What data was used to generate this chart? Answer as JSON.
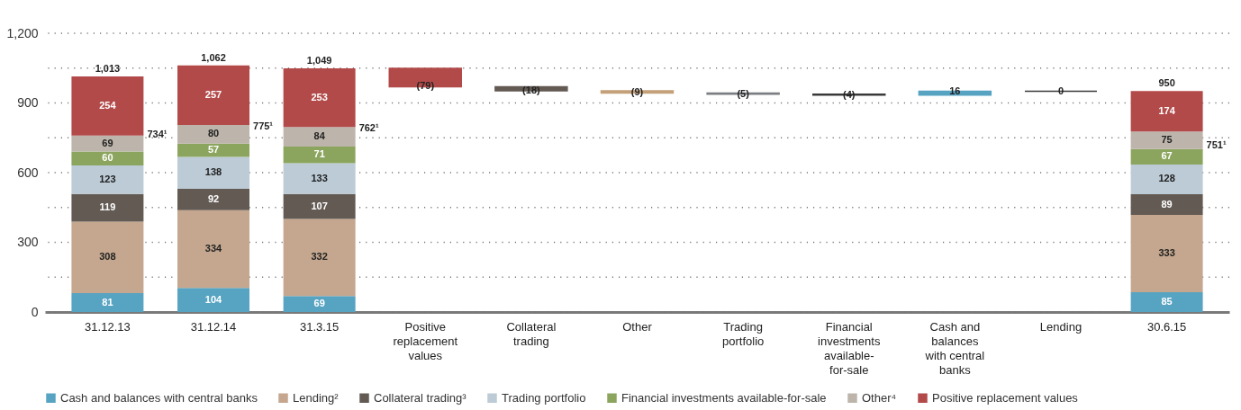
{
  "chart_data": {
    "type": "bar",
    "stacked": true,
    "categories": [
      "31.12.13",
      "31.12.14",
      "31.3.15",
      "Positive replacement values",
      "Collateral trading",
      "Other",
      "Trading portfolio",
      "Financial investments available-for-sale",
      "Cash and balances with central banks",
      "Lending",
      "30.6.15"
    ],
    "ylim": [
      0,
      1200
    ],
    "yticks": [
      0,
      {
        "value": 150,
        "label": null
      },
      300,
      {
        "value": 450,
        "label": null
      },
      600,
      {
        "value": 750,
        "label": null
      },
      900,
      {
        "value": 1050,
        "label": null
      },
      {
        "value": 1200,
        "label": "1,200"
      }
    ],
    "grid": "y",
    "legend": "bottom",
    "data_labels": true,
    "totals": [
      "1,013",
      "1,062",
      "1,049",
      null,
      null,
      null,
      null,
      null,
      null,
      null,
      "950"
    ],
    "annotations": [
      "734¹",
      "775¹",
      "762¹",
      "751¹"
    ],
    "series": [
      {
        "name": "Cash and balances with central banks",
        "color": "#57a3c2",
        "values": [
          81,
          104,
          69,
          null,
          null,
          null,
          null,
          null,
          null,
          null,
          85
        ]
      },
      {
        "name": "Lending²",
        "color": "#c4a78e",
        "values": [
          308,
          334,
          332,
          null,
          null,
          null,
          null,
          null,
          null,
          null,
          333
        ]
      },
      {
        "name": "Collateral trading³",
        "color": "#635a53",
        "values": [
          119,
          92,
          107,
          null,
          null,
          null,
          null,
          null,
          null,
          null,
          89
        ]
      },
      {
        "name": "Trading portfolio",
        "color": "#bccbd6",
        "values": [
          123,
          138,
          133,
          null,
          null,
          null,
          null,
          null,
          null,
          null,
          128
        ]
      },
      {
        "name": "Financial investments available-for-sale",
        "color": "#8ca55e",
        "values": [
          60,
          57,
          71,
          null,
          null,
          null,
          null,
          null,
          null,
          null,
          67
        ]
      },
      {
        "name": "Other⁴",
        "color": "#bdb5ab",
        "values": [
          69,
          80,
          84,
          null,
          null,
          null,
          null,
          null,
          null,
          null,
          75
        ]
      },
      {
        "name": "Positive replacement values",
        "color": "#b24a49",
        "values": [
          254,
          257,
          253,
          null,
          null,
          null,
          null,
          null,
          null,
          null,
          174
        ]
      },
      {
        "type": "bar",
        "values": [
          null,
          null,
          null,
          -79,
          -18,
          -9,
          -5,
          -4,
          16,
          0,
          null
        ],
        "base": [
          null,
          null,
          null,
          1049,
          970,
          952,
          943,
          938,
          934,
          950,
          null
        ],
        "colors": [
          null,
          null,
          null,
          "#b24a49",
          "#635a53",
          "#c4a07a",
          "#7a7e82",
          "#3a3a3a",
          "#57a3c2",
          "#3a3a3a",
          null
        ],
        "value_labels": [
          null,
          null,
          null,
          "(79)",
          "(18)",
          "(9)",
          "(5)",
          "(4)",
          "16",
          "0",
          null
        ]
      }
    ]
  }
}
